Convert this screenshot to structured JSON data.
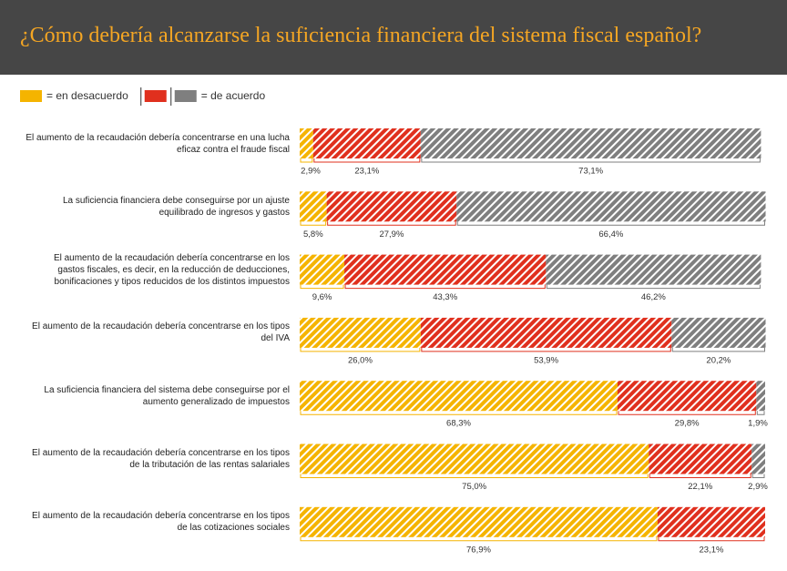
{
  "chart_data": {
    "type": "stacked-bar-horizontal",
    "title": "¿Cómo debería alcanzarse la suficiencia financiera del sistema fiscal español?",
    "legend": [
      {
        "label": "= en desacuerdo",
        "colors": [
          "#f5b400"
        ]
      },
      {
        "label": "= de acuerdo",
        "colors": [
          "#e0301e",
          "#7f7f7f"
        ]
      }
    ],
    "categories": [
      "El aumento de la recaudación debería concentrarse en una lucha eficaz contra el fraude fiscal",
      "La suficiencia financiera debe conseguirse por un ajuste equilibrado de ingresos y gastos",
      "El aumento de la recaudación debería concentrarse en los gastos fiscales, es decir, en la reducción de deducciones, bonificaciones y tipos reducidos de los distintos impuestos",
      "El aumento de la recaudación debería concentrarse en los tipos del IVA",
      "La suficiencia financiera del sistema debe conseguirse por el aumento generalizado de impuestos",
      "El aumento de la recaudación debería concentrarse en los tipos de la tributación de las rentas salariales",
      "El aumento de la recaudación debería concentrarse en los tipos de las cotizaciones sociales"
    ],
    "xlim": [
      0,
      100
    ],
    "series": [
      {
        "color": "#f5b400",
        "values": [
          2.9,
          5.8,
          9.6,
          26.0,
          68.3,
          75.0,
          76.9
        ],
        "value_labels": [
          "2,9%",
          "5,8%",
          "9,6%",
          "26,0%",
          "68,3%",
          "75,0%",
          "76,9%"
        ]
      },
      {
        "color": "#e0301e",
        "values": [
          23.1,
          27.9,
          43.3,
          53.9,
          29.8,
          22.1,
          23.1
        ],
        "value_labels": [
          "23,1%",
          "27,9%",
          "43,3%",
          "53,9%",
          "29,8%",
          "22,1%",
          "23,1%"
        ]
      },
      {
        "color": "#7f7f7f",
        "values": [
          73.1,
          66.4,
          46.2,
          20.2,
          1.9,
          2.9,
          null
        ],
        "value_labels": [
          "73,1%",
          "66,4%",
          "46,2%",
          "20,2%",
          "1,9%",
          "2,9%",
          null
        ]
      }
    ]
  }
}
